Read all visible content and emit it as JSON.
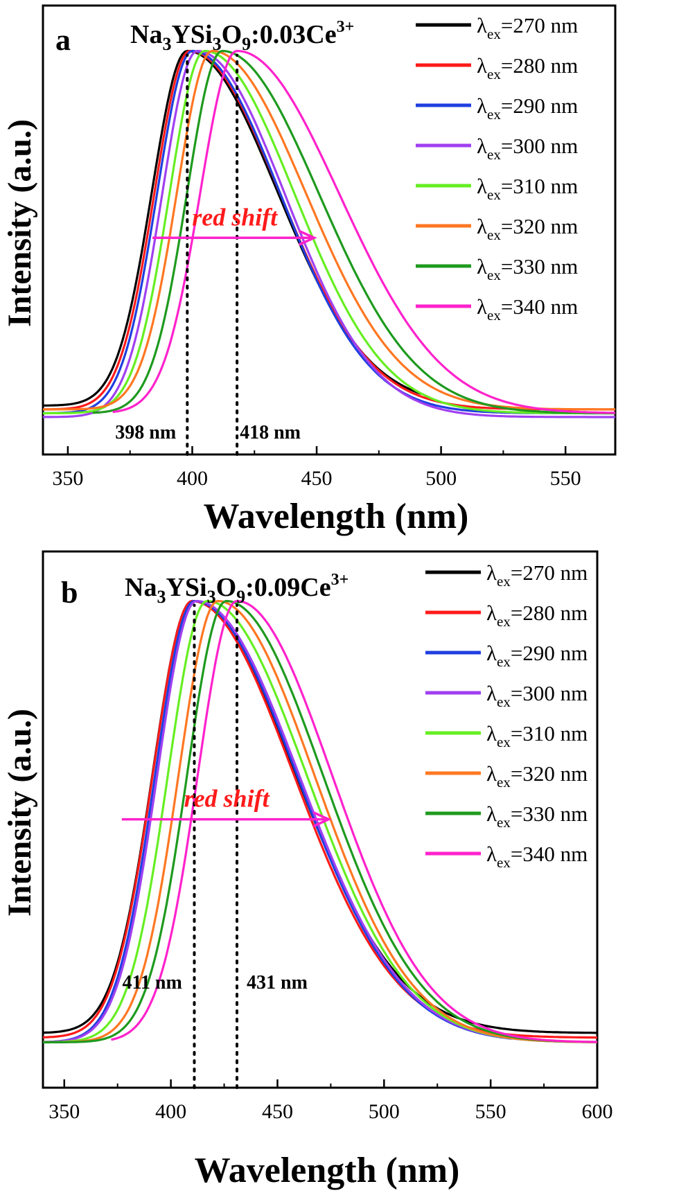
{
  "chart_data": [
    {
      "type": "line",
      "panel_label": "a",
      "sample": {
        "main": "Na",
        "s1": "3",
        "m2": "YSi",
        "s2": "3",
        "m3": "O",
        "s3": "9",
        "m4": ":0.03Ce",
        "sup": "3+"
      },
      "xlabel": "Wavelength (nm)",
      "ylabel": "Intensity (a.u.)",
      "xlim": [
        340,
        570
      ],
      "ylim": [
        0,
        1.05
      ],
      "xticks": [
        350,
        400,
        450,
        500,
        550
      ],
      "minor_xticks": [
        375,
        425,
        475,
        525
      ],
      "legend_position": "top-right",
      "annotation": "red  shift",
      "arrow": {
        "from": 384,
        "to": 449,
        "y": 0.51,
        "color": "#ff22cc"
      },
      "peak_markers": [
        {
          "x": 398,
          "label": "398 nm"
        },
        {
          "x": 418,
          "label": "418 nm"
        }
      ],
      "series": [
        {
          "label_prefix": "λ",
          "label_sub": "ex",
          "label_value": "=270 nm",
          "color": "#000000",
          "peak": 398,
          "wl": 20,
          "wr": 51,
          "base": 0.07,
          "start": 340,
          "end": 492
        },
        {
          "label_prefix": "λ",
          "label_sub": "ex",
          "label_value": "=280 nm",
          "color": "#ff1a1a",
          "peak": 399,
          "wl": 20,
          "wr": 51,
          "base": 0.06,
          "start": 340,
          "end": 570
        },
        {
          "label_prefix": "λ",
          "label_sub": "ex",
          "label_value": "=290 nm",
          "color": "#1f3fe0",
          "peak": 400,
          "wl": 20,
          "wr": 50,
          "base": 0.05,
          "start": 340,
          "end": 570
        },
        {
          "label_prefix": "λ",
          "label_sub": "ex",
          "label_value": "=300 nm",
          "color": "#a040f0",
          "peak": 402,
          "wl": 20,
          "wr": 50,
          "base": 0.04,
          "start": 340,
          "end": 570
        },
        {
          "label_prefix": "λ",
          "label_sub": "ex",
          "label_value": "=310 nm",
          "color": "#66ee22",
          "peak": 405,
          "wl": 20,
          "wr": 51,
          "base": 0.05,
          "start": 340,
          "end": 570
        },
        {
          "label_prefix": "λ",
          "label_sub": "ex",
          "label_value": "=320 nm",
          "color": "#ff7722",
          "peak": 408,
          "wl": 20,
          "wr": 53,
          "base": 0.06,
          "start": 340,
          "end": 570
        },
        {
          "label_prefix": "λ",
          "label_sub": "ex",
          "label_value": "=330 nm",
          "color": "#1e9a1e",
          "peak": 412,
          "wl": 20,
          "wr": 55,
          "base": 0.05,
          "start": 360,
          "end": 570
        },
        {
          "label_prefix": "λ",
          "label_sub": "ex",
          "label_value": "=340 nm",
          "color": "#ff22cc",
          "peak": 418,
          "wl": 21,
          "wr": 58,
          "base": 0.05,
          "start": 368,
          "end": 570
        }
      ]
    },
    {
      "type": "line",
      "panel_label": "b",
      "sample": {
        "main": "Na",
        "s1": "3",
        "m2": "YSi",
        "s2": "3",
        "m3": "O",
        "s3": "9",
        "m4": ":0.09Ce",
        "sup": "3+"
      },
      "xlabel": "Wavelength (nm)",
      "ylabel": "Intensity (a.u.)",
      "xlim": [
        340,
        600
      ],
      "ylim": [
        0,
        1.05
      ],
      "xticks": [
        350,
        400,
        450,
        500,
        550,
        600
      ],
      "minor_xticks": [
        375,
        425,
        475,
        525,
        575
      ],
      "legend_position": "top-right",
      "annotation": "red  shift",
      "arrow": {
        "from": 377,
        "to": 474,
        "y": 0.53,
        "color": "#ff22cc"
      },
      "peak_markers": [
        {
          "x": 411,
          "label": "411 nm"
        },
        {
          "x": 431,
          "label": "431 nm"
        }
      ],
      "series": [
        {
          "label_prefix": "λ",
          "label_sub": "ex",
          "label_value": "=270 nm",
          "color": "#000000",
          "peak": 410,
          "wl": 26,
          "wr": 68,
          "base": 0.07,
          "start": 340,
          "end": 600
        },
        {
          "label_prefix": "λ",
          "label_sub": "ex",
          "label_value": "=280 nm",
          "color": "#ff1a1a",
          "peak": 410,
          "wl": 26,
          "wr": 67,
          "base": 0.06,
          "start": 340,
          "end": 600
        },
        {
          "label_prefix": "λ",
          "label_sub": "ex",
          "label_value": "=290 nm",
          "color": "#1f3fe0",
          "peak": 411,
          "wl": 26,
          "wr": 68,
          "base": 0.05,
          "start": 340,
          "end": 560
        },
        {
          "label_prefix": "λ",
          "label_sub": "ex",
          "label_value": "=300 nm",
          "color": "#a040f0",
          "peak": 412,
          "wl": 26,
          "wr": 68,
          "base": 0.05,
          "start": 340,
          "end": 600
        },
        {
          "label_prefix": "λ",
          "label_sub": "ex",
          "label_value": "=310 nm",
          "color": "#66ee22",
          "peak": 417,
          "wl": 26,
          "wr": 66,
          "base": 0.05,
          "start": 340,
          "end": 600
        },
        {
          "label_prefix": "λ",
          "label_sub": "ex",
          "label_value": "=320 nm",
          "color": "#ff7722",
          "peak": 422,
          "wl": 26,
          "wr": 64,
          "base": 0.05,
          "start": 340,
          "end": 600
        },
        {
          "label_prefix": "λ",
          "label_sub": "ex",
          "label_value": "=330 nm",
          "color": "#1e9a1e",
          "peak": 426,
          "wl": 26,
          "wr": 64,
          "base": 0.05,
          "start": 340,
          "end": 600
        },
        {
          "label_prefix": "λ",
          "label_sub": "ex",
          "label_value": "=340 nm",
          "color": "#ff22cc",
          "peak": 431,
          "wl": 26,
          "wr": 63,
          "base": 0.05,
          "start": 372,
          "end": 600
        }
      ]
    }
  ]
}
